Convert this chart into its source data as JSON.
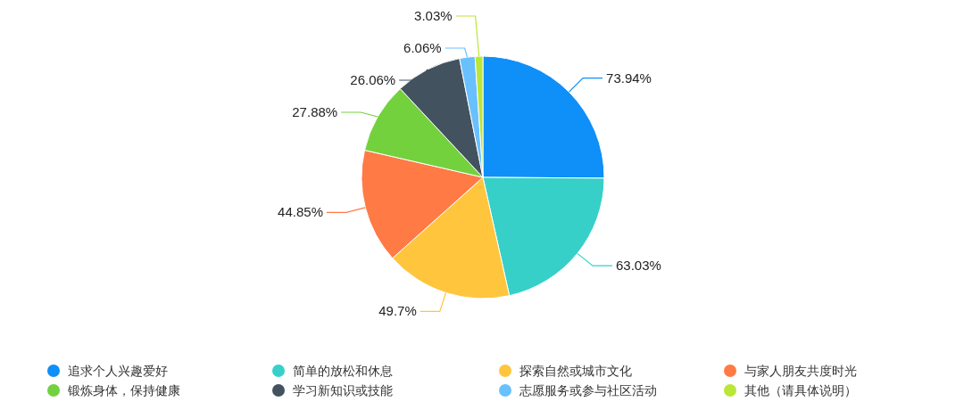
{
  "chart_data": {
    "type": "pie",
    "categories": [
      "追求个人兴趣爱好",
      "简单的放松和休息",
      "探索自然或城市文化",
      "与家人朋友共度时光",
      "锻炼身体，保持健康",
      "学习新知识或技能",
      "志愿服务或参与社区活动",
      "其他（请具体说明）"
    ],
    "values": [
      73.94,
      63.03,
      49.7,
      44.85,
      27.88,
      26.06,
      6.06,
      3.03
    ],
    "value_labels": [
      "73.94%",
      "63.03%",
      "49.7%",
      "44.85%",
      "27.88%",
      "26.06%",
      "6.06%",
      "3.03%"
    ],
    "colors": [
      "#0f8ff8",
      "#36d0c9",
      "#ffc53d",
      "#ff7a45",
      "#73d13d",
      "#43525f",
      "#69c0ff",
      "#bae637"
    ],
    "legend": "bottom"
  }
}
